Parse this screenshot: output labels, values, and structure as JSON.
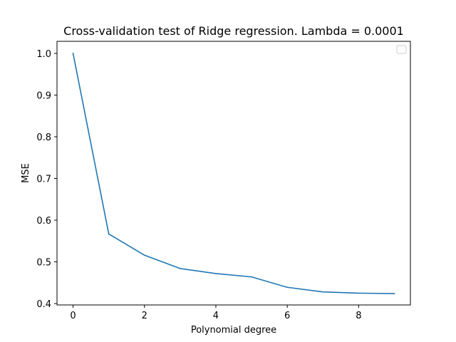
{
  "chart_data": {
    "type": "line",
    "title": "Cross-validation test of Ridge regression. Lambda = 0.0001",
    "xlabel": "Polynomial degree",
    "ylabel": "MSE",
    "xlim": [
      -0.45,
      9.45
    ],
    "ylim": [
      0.3967,
      1.0289
    ],
    "xticks": [
      0,
      2,
      4,
      6,
      8
    ],
    "yticks": [
      0.4,
      0.5,
      0.6,
      0.7,
      0.8,
      0.9,
      1.0
    ],
    "grid": false,
    "legend": {
      "placement": "top-right",
      "entries": []
    },
    "series": [
      {
        "color": "#1f77b4",
        "x": [
          0,
          1,
          2,
          3,
          4,
          5,
          6,
          7,
          8,
          9
        ],
        "y": [
          1.0,
          0.567,
          0.516,
          0.484,
          0.472,
          0.464,
          0.439,
          0.428,
          0.425,
          0.424
        ]
      }
    ]
  }
}
